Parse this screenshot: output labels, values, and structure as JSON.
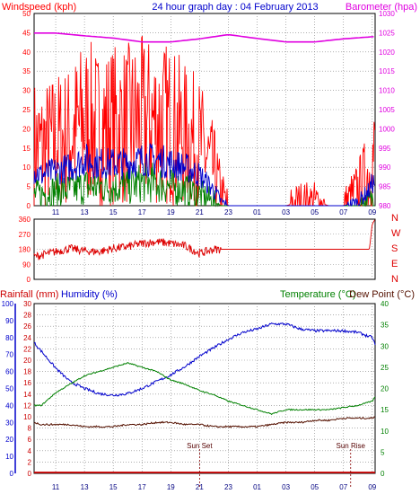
{
  "header": {
    "windspeed_label": "Windspeed (kph)",
    "title": "24 hour graph day : 04 February 2013",
    "barometer_label": "Barometer (hpa)"
  },
  "lower_header": {
    "rainfall_label": "Rainfall (mm)",
    "humidity_label": "Humidity (%)",
    "temperature_label": "Temperature (°C)",
    "dewpoint_label": "Dew Point (°C)"
  },
  "colors": {
    "wind_gust": "#ff0000",
    "wind_avg": "#0000cc",
    "wind_low": "#008000",
    "barometer": "#e000e0",
    "direction": "#dd0000",
    "humidity": "#0000cc",
    "temperature": "#008000",
    "dewpoint": "#551100",
    "rain": "#cc0000",
    "grid": "#808080"
  },
  "chart_data": [
    {
      "type": "line",
      "name": "wind_and_barometer",
      "x_ticks": [
        "11",
        "13",
        "15",
        "17",
        "19",
        "21",
        "23",
        "01",
        "03",
        "05",
        "07",
        "09"
      ],
      "left_axis": {
        "label": "Windspeed (kph)",
        "ticks": [
          0,
          5,
          10,
          15,
          20,
          25,
          30,
          35,
          40,
          45,
          50
        ],
        "ylim": [
          0,
          50
        ]
      },
      "right_axis": {
        "label": "Barometer (hpa)",
        "ticks": [
          980,
          985,
          990,
          995,
          1000,
          1005,
          1010,
          1015,
          1020,
          1025,
          1030
        ],
        "ylim": [
          980,
          1030
        ]
      },
      "grid": true,
      "series": [
        {
          "key": "gust",
          "axis": "left",
          "x": [
            9.5,
            10,
            11,
            12,
            13,
            14,
            15,
            16,
            17,
            18,
            19,
            20,
            21,
            22,
            22.5,
            23,
            24,
            25,
            26,
            27,
            28,
            29,
            30,
            31,
            32,
            32.8,
            33,
            33.2
          ],
          "values": [
            16,
            15,
            17,
            18,
            22,
            20,
            21,
            21,
            22,
            22,
            21,
            18,
            16,
            9,
            3,
            0,
            0,
            0,
            0,
            0,
            1,
            1,
            0,
            0,
            4,
            9,
            12,
            13
          ]
        },
        {
          "key": "avg",
          "axis": "left",
          "x": [
            9.5,
            10,
            11,
            12,
            13,
            14,
            15,
            16,
            17,
            18,
            19,
            20,
            21,
            22,
            22.5,
            23,
            24,
            25,
            26,
            27,
            28,
            29,
            30,
            31,
            32,
            32.8,
            33,
            33.2
          ],
          "values": [
            9,
            8,
            9,
            10,
            12,
            11,
            11,
            11,
            12,
            12,
            11,
            10,
            8,
            4,
            1,
            0,
            0,
            0,
            0,
            0,
            0,
            0,
            0,
            0,
            1,
            4,
            6,
            6
          ]
        },
        {
          "key": "low",
          "axis": "left",
          "x": [
            9.5,
            10,
            11,
            12,
            13,
            14,
            15,
            16,
            17,
            18,
            19,
            20,
            21,
            22,
            22.5,
            23,
            24,
            25,
            26,
            27,
            28,
            29,
            30,
            31,
            32,
            32.8,
            33,
            33.2
          ],
          "values": [
            3,
            3,
            4,
            4,
            5,
            5,
            5,
            5,
            6,
            6,
            5,
            4,
            3,
            1,
            0,
            0,
            0,
            0,
            0,
            0,
            0,
            0,
            0,
            0,
            0,
            1,
            2,
            2
          ]
        },
        {
          "key": "barometer",
          "axis": "right",
          "x": [
            9.5,
            11,
            13,
            15,
            17,
            19,
            21,
            23,
            25,
            27,
            29,
            31,
            33.2
          ],
          "values": [
            1024.9,
            1024.9,
            1024.2,
            1023.6,
            1022.6,
            1022.6,
            1023.4,
            1024.5,
            1023.5,
            1022.6,
            1022.6,
            1023.4,
            1024.0
          ]
        }
      ]
    },
    {
      "type": "line",
      "name": "wind_direction",
      "left_axis": {
        "ticks": [
          0,
          90,
          180,
          270,
          360
        ],
        "ylim": [
          0,
          360
        ]
      },
      "right_labels": [
        "N",
        "W",
        "S",
        "E",
        "N"
      ],
      "x": [
        9.5,
        10,
        11,
        12,
        13,
        14,
        15,
        16,
        17,
        18,
        19,
        20,
        21,
        22,
        24,
        26,
        28,
        30,
        32,
        32.8,
        33.0,
        33.2
      ],
      "values": [
        135,
        145,
        165,
        185,
        170,
        165,
        185,
        195,
        215,
        225,
        215,
        200,
        155,
        180,
        180,
        180,
        180,
        180,
        180,
        180,
        330,
        360
      ]
    },
    {
      "type": "line",
      "name": "temperature_humidity_rain",
      "x_ticks": [
        "11",
        "13",
        "15",
        "17",
        "19",
        "21",
        "23",
        "01",
        "03",
        "05",
        "07",
        "09"
      ],
      "rain_axis": {
        "label": "Rainfall (mm)",
        "ticks": [
          0,
          2,
          4,
          6,
          8,
          10,
          12,
          14,
          16,
          18,
          20,
          22,
          24,
          26,
          28,
          30
        ],
        "ylim": [
          0,
          30
        ]
      },
      "humidity_axis": {
        "label": "Humidity (%)",
        "ticks": [
          0,
          10,
          20,
          30,
          40,
          50,
          60,
          70,
          80,
          90,
          100
        ],
        "ylim": [
          0,
          100
        ]
      },
      "temp_axis": {
        "label": "Temperature (°C)",
        "ticks": [
          0,
          5,
          10,
          15,
          20,
          25,
          30,
          35,
          40
        ],
        "ylim": [
          0,
          40
        ]
      },
      "annotations": [
        {
          "text": "Sun Set",
          "x": 21.0
        },
        {
          "text": "Sun Rise",
          "x": 31.5
        }
      ],
      "grid": true,
      "series": [
        {
          "key": "humidity",
          "axis": "humidity",
          "x": [
            9.5,
            10,
            11,
            12,
            13,
            14,
            15,
            16,
            17,
            18,
            19,
            20,
            21,
            22,
            23,
            24,
            25,
            26,
            27,
            28,
            29,
            30,
            31,
            32,
            33,
            33.2
          ],
          "values": [
            77,
            72,
            62,
            54,
            50,
            47,
            46,
            47,
            50,
            54,
            58,
            63,
            69,
            74,
            79,
            83,
            85,
            88,
            88,
            85,
            84,
            84,
            84,
            83,
            80,
            76
          ]
        },
        {
          "key": "temperature",
          "axis": "temp",
          "x": [
            9.5,
            10,
            11,
            12,
            13,
            14,
            15,
            16,
            17,
            18,
            19,
            20,
            21,
            22,
            23,
            24,
            25,
            26,
            27,
            28,
            29,
            30,
            31,
            32,
            33,
            33.2
          ],
          "values": [
            16,
            16,
            19,
            21,
            23,
            24,
            25,
            26,
            25,
            24,
            22,
            21,
            19.5,
            18.5,
            17,
            16,
            15,
            14,
            15,
            15,
            15,
            15,
            15.5,
            16,
            17,
            18
          ]
        },
        {
          "key": "dewpoint",
          "axis": "temp",
          "x": [
            9.5,
            10,
            11,
            12,
            13,
            14,
            15,
            16,
            17,
            18,
            19,
            20,
            21,
            22,
            23,
            24,
            25,
            26,
            27,
            28,
            29,
            30,
            31,
            32,
            33,
            33.2
          ],
          "values": [
            12,
            11.5,
            11.5,
            11.5,
            11,
            11,
            11,
            11.5,
            11.5,
            12,
            12,
            11.5,
            11.5,
            11,
            11,
            11,
            11,
            11.5,
            12,
            12,
            12.5,
            12.5,
            13,
            13,
            13,
            13.5
          ]
        },
        {
          "key": "rain",
          "axis": "rain",
          "x": [
            9.5,
            33.2
          ],
          "values": [
            0,
            0
          ]
        }
      ]
    }
  ]
}
